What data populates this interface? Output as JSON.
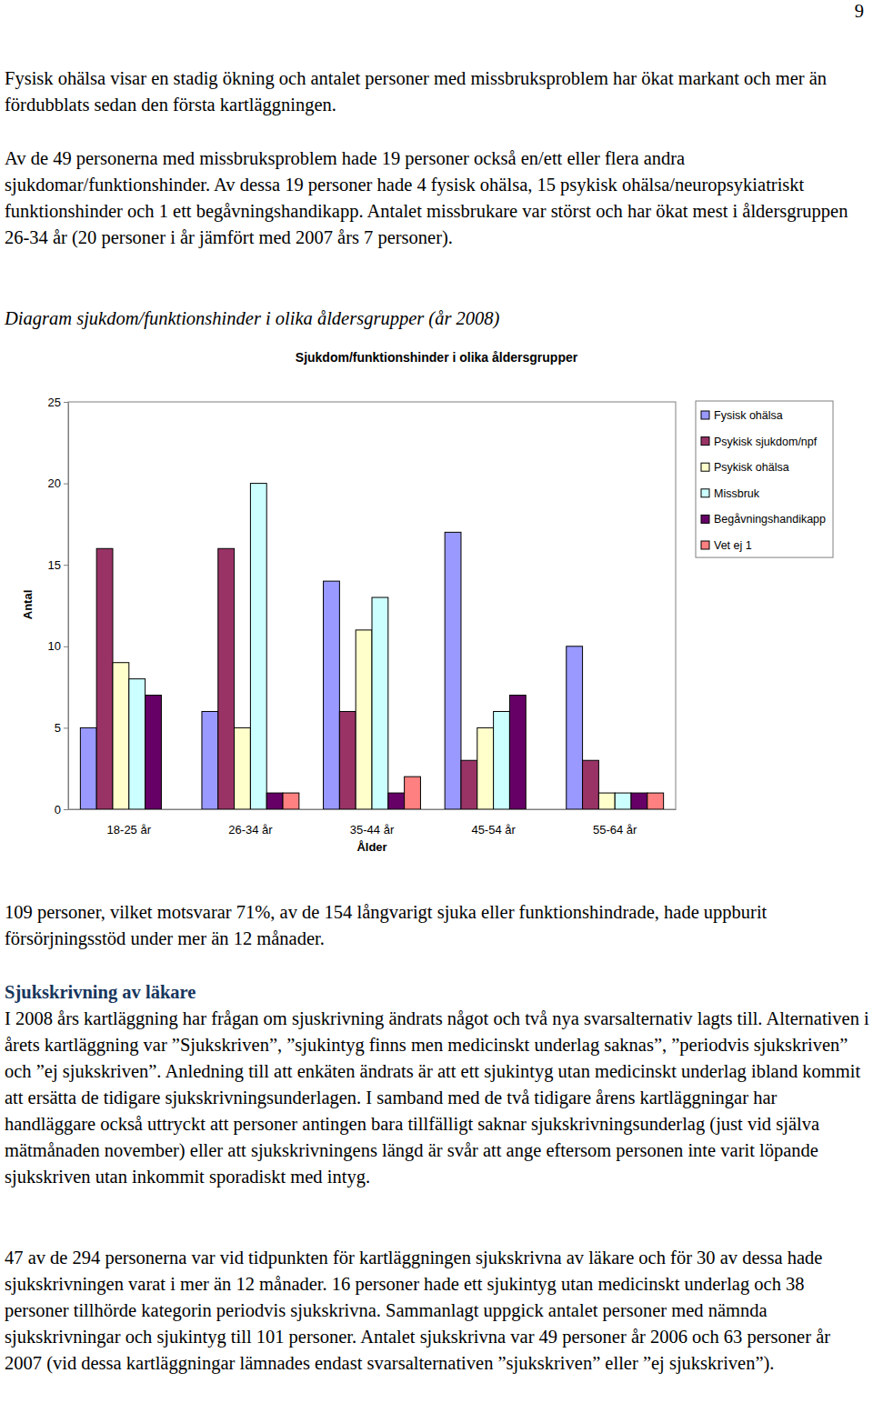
{
  "page_number": "9",
  "paragraphs_before": [
    "Fysisk ohälsa visar en stadig ökning och antalet personer med missbruksproblem har ökat markant och mer än fördubblats sedan den första kartläggningen.",
    "Av de 49 personerna med missbruksproblem hade 19 personer också en/ett eller flera andra sjukdomar/funktionshinder. Av dessa 19 personer hade 4 fysisk ohälsa, 15 psykisk ohälsa/neuropsykiatriskt funktionshinder och 1 ett begåvningshandikapp. Antalet missbrukare var störst och har ökat mest i åldersgruppen 26-34 år (20 personer i år jämfört med 2007 års 7 personer)."
  ],
  "caption": "Diagram sjukdom/funktionshinder i olika åldersgrupper (år 2008)",
  "chart_data": {
    "type": "bar",
    "title": "Sjukdom/funktionshinder i olika åldersgrupper",
    "x_label": "Ålder",
    "y_label": "Antal",
    "categories": [
      "18-25 år",
      "26-34 år",
      "35-44 år",
      "45-54 år",
      "55-64 år"
    ],
    "series": [
      {
        "name": "Fysisk ohälsa",
        "color": "#9999ff",
        "values": [
          5,
          6,
          14,
          17,
          10
        ]
      },
      {
        "name": "Psykisk sjukdom/npf",
        "color": "#993366",
        "values": [
          16,
          16,
          6,
          3,
          3
        ]
      },
      {
        "name": "Psykisk ohälsa",
        "color": "#ffffcc",
        "values": [
          9,
          5,
          11,
          5,
          1
        ]
      },
      {
        "name": "Missbruk",
        "color": "#ccffff",
        "values": [
          8,
          20,
          13,
          6,
          1
        ]
      },
      {
        "name": "Begåvningshandikapp",
        "color": "#660066",
        "values": [
          7,
          1,
          1,
          7,
          1
        ]
      },
      {
        "name": "Vet ej 1",
        "color": "#ff8080",
        "values": [
          0,
          1,
          2,
          0,
          1
        ]
      }
    ],
    "ylim": [
      0,
      25
    ],
    "yticks": [
      0,
      5,
      10,
      15,
      20,
      25
    ],
    "grid": false,
    "legend": "right"
  },
  "paragraphs_after": [
    "109 personer, vilket motsvarar 71%, av de 154 långvarigt sjuka eller funktionshindrade, hade uppburit försörjningsstöd under mer än 12 månader."
  ],
  "heading": "Sjukskrivning av läkare",
  "section_paragraphs": [
    "I 2008 års kartläggning har frågan om sjuskrivning ändrats något och två nya svarsalternativ lagts till. Alternativen i årets kartläggning var ”Sjukskriven”, ”sjukintyg finns men medicinskt underlag saknas”, ”periodvis sjukskriven” och ”ej sjukskriven”. Anledning till att enkäten ändrats är att ett sjukintyg utan medicinskt underlag ibland kommit att ersätta de tidigare sjukskrivningsunderlagen. I samband med de två tidigare årens kartläggningar har handläggare också uttryckt att personer antingen bara tillfälligt saknar sjukskrivningsunderlag (just vid själva mätmånaden november) eller att sjukskrivningens längd är svår att ange eftersom personen inte varit löpande sjukskriven utan inkommit sporadiskt med intyg.",
    "47 av de 294 personerna var vid tidpunkten för kartläggningen sjukskrivna av läkare och för 30 av dessa hade sjukskrivningen varat i mer än 12 månader. 16 personer hade ett sjukintyg utan medicinskt underlag och 38 personer tillhörde kategorin periodvis sjukskrivna. Sammanlagt uppgick antalet personer med nämnda sjukskrivningar och sjukintyg till 101 personer. Antalet sjukskrivna var 49 personer år 2006 och 63 personer år 2007 (vid dessa kartläggningar lämnades endast svarsalternativen ”sjukskriven” eller ”ej sjukskriven”)."
  ]
}
